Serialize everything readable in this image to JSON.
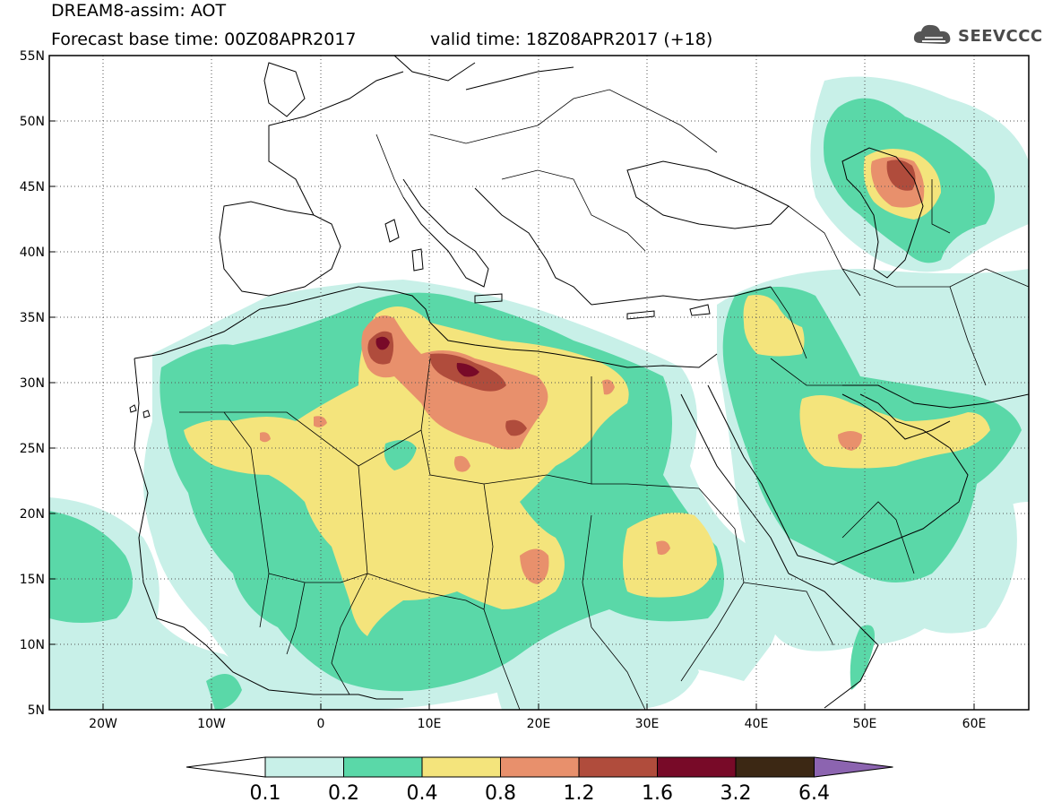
{
  "header": {
    "model": "DREAM8-assim: AOT",
    "base_time": "Forecast base time: 00Z08APR2017",
    "valid_time": "valid time: 18Z08APR2017 (+18)"
  },
  "logo": {
    "text": "SEEVCCC",
    "icon": "cloud-icon"
  },
  "axes": {
    "lat_labels": [
      "55N",
      "50N",
      "45N",
      "40N",
      "35N",
      "30N",
      "25N",
      "20N",
      "15N",
      "10N",
      "5N"
    ],
    "lon_labels": [
      "20W",
      "10W",
      "0",
      "10E",
      "20E",
      "30E",
      "40E",
      "50E",
      "60E"
    ],
    "lat_range": [
      5,
      55
    ],
    "lon_range": [
      -25,
      65
    ]
  },
  "colorbar": {
    "colors": [
      "#c8f0e8",
      "#5ad8a8",
      "#f4e47c",
      "#e8906c",
      "#b04c3c",
      "#780a28",
      "#3c2814",
      "#8c64b0"
    ],
    "ticks": [
      "0.1",
      "0.2",
      "0.4",
      "0.8",
      "1.2",
      "1.6",
      "3.2",
      "6.4"
    ]
  }
}
